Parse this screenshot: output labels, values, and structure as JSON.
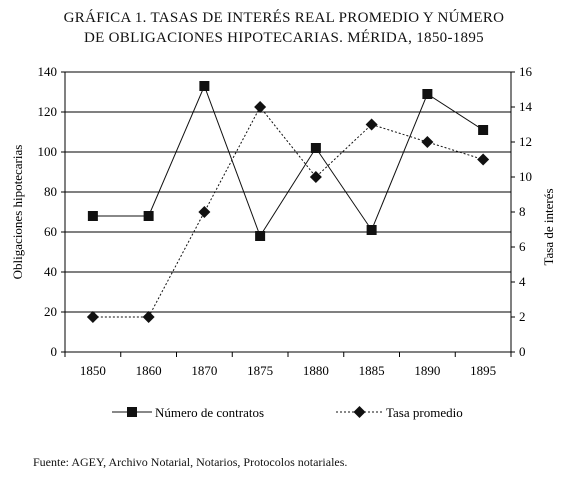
{
  "figure": {
    "title_line1": "GRÁFICA 1. TASAS DE INTERÉS REAL PROMEDIO Y NÚMERO",
    "title_line2": "DE OBLIGACIONES HIPOTECARIAS. MÉRIDA, 1850-1895",
    "source": "Fuente: AGEY, Archivo Notarial, Notarios, Protocolos notariales."
  },
  "chart_data": {
    "type": "line",
    "categories": [
      "1850",
      "1860",
      "1870",
      "1875",
      "1880",
      "1885",
      "1890",
      "1895"
    ],
    "ylabel": "Obligaciones hipotecarias",
    "y2label": "Tasa de interés",
    "ylim": [
      0,
      140
    ],
    "y2lim": [
      0,
      16
    ],
    "yticks": [
      0,
      20,
      40,
      60,
      80,
      100,
      120,
      140
    ],
    "y2ticks": [
      0,
      2,
      4,
      6,
      8,
      10,
      12,
      14,
      16
    ],
    "grid": true,
    "legend": "bottom",
    "series": [
      {
        "name": "Número de contratos",
        "axis": "left",
        "marker": "square",
        "line": "solid",
        "values": [
          68,
          68,
          133,
          58,
          102,
          61,
          129,
          111
        ]
      },
      {
        "name": "Tasa promedio",
        "axis": "right",
        "marker": "diamond",
        "line": "dotted",
        "values": [
          2,
          2,
          8,
          14,
          10,
          13,
          12,
          11
        ]
      }
    ]
  }
}
